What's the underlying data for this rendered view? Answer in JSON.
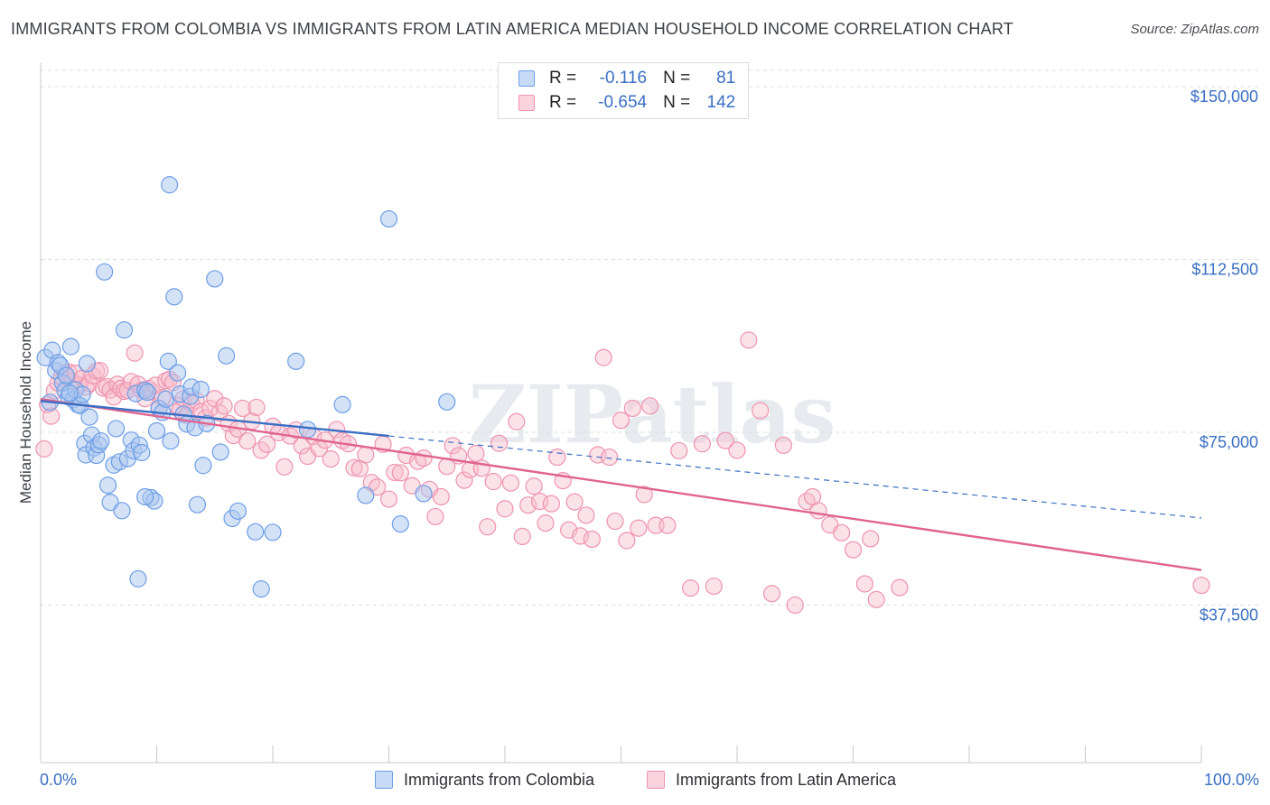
{
  "title": "IMMIGRANTS FROM COLOMBIA VS IMMIGRANTS FROM LATIN AMERICA MEDIAN HOUSEHOLD INCOME CORRELATION CHART",
  "source": "Source: ZipAtlas.com",
  "watermark": "ZIPatlas",
  "colors": {
    "colombia_fill": "#a9c6f0",
    "colombia_stroke": "#6d9ee6",
    "colombia_line": "#3a6fc4",
    "latin_fill": "#f6bccd",
    "latin_stroke": "#ee93b0",
    "latin_line": "#e0648f",
    "axis_text": "#3a6fc4",
    "grid": "#dadde2"
  },
  "legend": {
    "rows": [
      {
        "r_label": "R =",
        "r_value": "-0.116",
        "n_label": "N =",
        "n_value": "81"
      },
      {
        "r_label": "R =",
        "r_value": "-0.654",
        "n_label": "N =",
        "n_value": "142"
      }
    ]
  },
  "chart_data": {
    "type": "scatter",
    "title": "IMMIGRANTS FROM COLOMBIA VS IMMIGRANTS FROM LATIN AMERICA MEDIAN HOUSEHOLD INCOME CORRELATION CHART",
    "xlabel": "",
    "ylabel": "Median Household Income",
    "x_tick_labels": [
      "0.0%",
      "100.0%"
    ],
    "y_tick_labels": [
      "$37,500",
      "$75,000",
      "$112,500",
      "$150,000"
    ],
    "y_ticks": [
      37500,
      75000,
      112500,
      150000
    ],
    "xlim": [
      0,
      100
    ],
    "ylim": [
      0,
      155000
    ],
    "grid": true,
    "legend_position": "bottom",
    "series": [
      {
        "name": "Immigrants from Colombia",
        "r": -0.116,
        "n": 81,
        "trend": {
          "x": [
            0,
            30
          ],
          "y": [
            81800,
            74200
          ]
        },
        "trend_dashed": {
          "x": [
            30,
            100
          ],
          "y": [
            74200,
            56400
          ]
        },
        "points": [
          [
            0.4,
            91200
          ],
          [
            0.8,
            81500
          ],
          [
            1.0,
            92800
          ],
          [
            1.3,
            88400
          ],
          [
            1.5,
            90100
          ],
          [
            1.7,
            89500
          ],
          [
            1.9,
            85700
          ],
          [
            2.1,
            84100
          ],
          [
            2.2,
            87300
          ],
          [
            2.4,
            82700
          ],
          [
            2.6,
            93600
          ],
          [
            2.8,
            82100
          ],
          [
            3.0,
            84200
          ],
          [
            3.2,
            81000
          ],
          [
            3.4,
            80800
          ],
          [
            3.6,
            83200
          ],
          [
            3.8,
            72600
          ],
          [
            3.9,
            70100
          ],
          [
            4.0,
            89900
          ],
          [
            4.2,
            78300
          ],
          [
            4.4,
            74400
          ],
          [
            4.6,
            71600
          ],
          [
            4.8,
            70000
          ],
          [
            5.0,
            72300
          ],
          [
            5.2,
            73100
          ],
          [
            5.5,
            109800
          ],
          [
            5.8,
            63500
          ],
          [
            6.0,
            59800
          ],
          [
            6.3,
            67900
          ],
          [
            6.5,
            75800
          ],
          [
            6.8,
            68600
          ],
          [
            7.0,
            58000
          ],
          [
            7.2,
            97200
          ],
          [
            7.5,
            69300
          ],
          [
            7.8,
            73300
          ],
          [
            8.0,
            71000
          ],
          [
            8.2,
            83400
          ],
          [
            8.5,
            72200
          ],
          [
            8.7,
            70600
          ],
          [
            9.0,
            84100
          ],
          [
            9.2,
            83700
          ],
          [
            9.5,
            60800
          ],
          [
            9.8,
            60100
          ],
          [
            10.0,
            75300
          ],
          [
            10.2,
            80200
          ],
          [
            10.5,
            79300
          ],
          [
            10.8,
            82200
          ],
          [
            11.0,
            90400
          ],
          [
            11.2,
            73100
          ],
          [
            11.5,
            104400
          ],
          [
            11.8,
            87900
          ],
          [
            12.0,
            83300
          ],
          [
            12.3,
            78900
          ],
          [
            12.6,
            76800
          ],
          [
            12.9,
            82800
          ],
          [
            13.0,
            84800
          ],
          [
            13.3,
            76000
          ],
          [
            13.5,
            59300
          ],
          [
            13.8,
            84300
          ],
          [
            14.0,
            67800
          ],
          [
            14.3,
            76900
          ],
          [
            15.0,
            108300
          ],
          [
            15.5,
            70700
          ],
          [
            16.0,
            91600
          ],
          [
            16.5,
            56300
          ],
          [
            17.0,
            57900
          ],
          [
            18.5,
            53400
          ],
          [
            19.0,
            41000
          ],
          [
            20.0,
            53300
          ],
          [
            22.0,
            90400
          ],
          [
            23.0,
            75600
          ],
          [
            26.0,
            81000
          ],
          [
            28.0,
            61300
          ],
          [
            30.0,
            121300
          ],
          [
            11.1,
            128700
          ],
          [
            8.4,
            43200
          ],
          [
            9.0,
            61000
          ],
          [
            31.0,
            55100
          ],
          [
            33.0,
            61700
          ],
          [
            35.0,
            81600
          ],
          [
            2.5,
            83500
          ]
        ]
      },
      {
        "name": "Immigrants from Latin America",
        "r": -0.654,
        "n": 142,
        "trend": {
          "x": [
            0,
            100
          ],
          "y": [
            82200,
            45100
          ]
        },
        "points": [
          [
            0.3,
            71400
          ],
          [
            0.6,
            81000
          ],
          [
            0.9,
            78500
          ],
          [
            1.2,
            84000
          ],
          [
            1.5,
            85700
          ],
          [
            1.8,
            87000
          ],
          [
            2.1,
            87900
          ],
          [
            2.4,
            88100
          ],
          [
            2.7,
            86100
          ],
          [
            3.0,
            87800
          ],
          [
            3.3,
            85200
          ],
          [
            3.6,
            86700
          ],
          [
            3.9,
            84800
          ],
          [
            4.2,
            85600
          ],
          [
            4.5,
            87300
          ],
          [
            4.8,
            88300
          ],
          [
            5.1,
            88400
          ],
          [
            5.4,
            84600
          ],
          [
            5.7,
            84900
          ],
          [
            6.0,
            84200
          ],
          [
            6.3,
            82700
          ],
          [
            6.6,
            85400
          ],
          [
            6.9,
            84500
          ],
          [
            7.2,
            83900
          ],
          [
            7.5,
            84100
          ],
          [
            7.8,
            86000
          ],
          [
            8.1,
            92200
          ],
          [
            8.4,
            85400
          ],
          [
            8.7,
            84100
          ],
          [
            9.0,
            82300
          ],
          [
            9.3,
            84500
          ],
          [
            9.6,
            83800
          ],
          [
            9.9,
            85200
          ],
          [
            10.2,
            80100
          ],
          [
            10.5,
            82500
          ],
          [
            10.8,
            86200
          ],
          [
            11.1,
            86500
          ],
          [
            11.4,
            85800
          ],
          [
            11.7,
            80900
          ],
          [
            12.0,
            79800
          ],
          [
            12.3,
            82300
          ],
          [
            12.6,
            78700
          ],
          [
            13.0,
            81200
          ],
          [
            13.4,
            81900
          ],
          [
            13.8,
            79500
          ],
          [
            14.2,
            78100
          ],
          [
            14.6,
            80200
          ],
          [
            15.0,
            82300
          ],
          [
            15.4,
            79200
          ],
          [
            15.8,
            80700
          ],
          [
            16.2,
            76900
          ],
          [
            16.6,
            74300
          ],
          [
            17.0,
            75700
          ],
          [
            17.4,
            80200
          ],
          [
            17.8,
            73100
          ],
          [
            18.2,
            77400
          ],
          [
            18.6,
            80400
          ],
          [
            19.0,
            71100
          ],
          [
            19.5,
            72400
          ],
          [
            20.0,
            76300
          ],
          [
            20.5,
            74900
          ],
          [
            21.0,
            67500
          ],
          [
            21.5,
            74200
          ],
          [
            22.0,
            75500
          ],
          [
            22.5,
            72100
          ],
          [
            23.0,
            69800
          ],
          [
            23.5,
            74100
          ],
          [
            24.0,
            71500
          ],
          [
            24.5,
            73300
          ],
          [
            25.0,
            69200
          ],
          [
            25.5,
            75600
          ],
          [
            26.0,
            73200
          ],
          [
            26.5,
            72500
          ],
          [
            27.0,
            67300
          ],
          [
            27.5,
            67100
          ],
          [
            28.0,
            70100
          ],
          [
            28.5,
            64100
          ],
          [
            29.0,
            63100
          ],
          [
            29.5,
            72400
          ],
          [
            30.0,
            60500
          ],
          [
            30.5,
            66300
          ],
          [
            31.0,
            66200
          ],
          [
            31.5,
            70000
          ],
          [
            32.0,
            63400
          ],
          [
            32.5,
            68700
          ],
          [
            33.0,
            69400
          ],
          [
            33.5,
            62600
          ],
          [
            34.0,
            56700
          ],
          [
            34.5,
            61000
          ],
          [
            35.0,
            67600
          ],
          [
            35.5,
            72100
          ],
          [
            36.0,
            69900
          ],
          [
            36.5,
            64600
          ],
          [
            37.0,
            66900
          ],
          [
            37.5,
            70400
          ],
          [
            38.0,
            67200
          ],
          [
            38.5,
            54500
          ],
          [
            39.0,
            64300
          ],
          [
            39.5,
            72600
          ],
          [
            40.0,
            58400
          ],
          [
            40.5,
            64000
          ],
          [
            41.0,
            77300
          ],
          [
            41.5,
            52400
          ],
          [
            42.0,
            59200
          ],
          [
            42.5,
            63300
          ],
          [
            43.0,
            60000
          ],
          [
            43.5,
            55300
          ],
          [
            44.0,
            59500
          ],
          [
            44.5,
            69600
          ],
          [
            45.0,
            64500
          ],
          [
            45.5,
            53800
          ],
          [
            46.0,
            59900
          ],
          [
            46.5,
            52500
          ],
          [
            47.0,
            57000
          ],
          [
            47.5,
            51800
          ],
          [
            48.0,
            70100
          ],
          [
            48.5,
            91200
          ],
          [
            49.0,
            69600
          ],
          [
            49.5,
            55700
          ],
          [
            50.0,
            77600
          ],
          [
            50.5,
            51500
          ],
          [
            51.0,
            80200
          ],
          [
            51.5,
            54200
          ],
          [
            52.0,
            61500
          ],
          [
            52.5,
            80700
          ],
          [
            53.0,
            54800
          ],
          [
            54.0,
            54800
          ],
          [
            55.0,
            71000
          ],
          [
            56.0,
            41200
          ],
          [
            57.0,
            72500
          ],
          [
            58.0,
            41600
          ],
          [
            59.0,
            73200
          ],
          [
            60.0,
            71100
          ],
          [
            61.0,
            95000
          ],
          [
            62.0,
            79700
          ],
          [
            63.0,
            40000
          ],
          [
            64.0,
            72200
          ],
          [
            65.0,
            37500
          ],
          [
            66.0,
            60000
          ],
          [
            67.0,
            58000
          ],
          [
            68.0,
            54900
          ],
          [
            69.0,
            53200
          ],
          [
            70.0,
            49500
          ],
          [
            71.0,
            42100
          ],
          [
            72.0,
            38700
          ],
          [
            74.0,
            41300
          ],
          [
            100.0,
            41800
          ],
          [
            66.5,
            61000
          ],
          [
            71.5,
            51900
          ]
        ]
      }
    ]
  },
  "bottom_legend": {
    "colombia_label": "Immigrants from Colombia",
    "latin_label": "Immigrants from Latin America"
  }
}
